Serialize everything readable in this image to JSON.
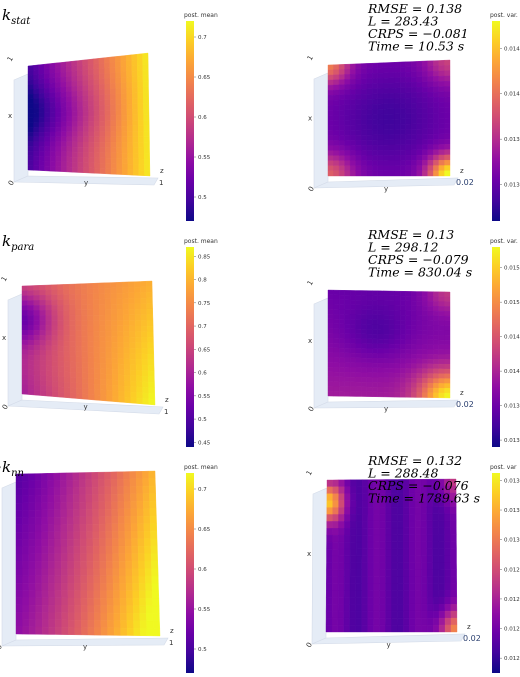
{
  "chart_data": [
    {
      "type": "surface3d",
      "kernel": "k",
      "kernel_sub": "stat",
      "colorbar_title": "post. mean",
      "colorbar_ticks": [
        "0.7",
        "0.65",
        "0.6",
        "0.55",
        "0.5"
      ],
      "colorbar_range": [
        0.47,
        0.72
      ],
      "axes": {
        "x": "x",
        "y": "y",
        "z": "z"
      },
      "ticks": {
        "x_top": "1",
        "x_bottom": "0",
        "z": "1"
      },
      "colorscale": "plasma"
    },
    {
      "type": "surface3d",
      "colorbar_title": "post. var.",
      "colorbar_ticks": [
        "0.0145",
        "0.014",
        "0.0135",
        "0.013"
      ],
      "colorbar_range": [
        0.0126,
        0.0148
      ],
      "axes": {
        "x": "x",
        "y": "y",
        "z": "z"
      },
      "ticks": {
        "x_top": "1",
        "x_bottom": "0",
        "z": "0.02"
      },
      "colorscale": "plasma",
      "stats": [
        "RMSE = 0.138",
        "L = 283.43",
        "CRPS = −0.081",
        "Time = 10.53 s"
      ]
    },
    {
      "type": "surface3d",
      "kernel": "k",
      "kernel_sub": "para",
      "colorbar_title": "post. mean",
      "colorbar_ticks": [
        "0.85",
        "0.8",
        "0.75",
        "0.7",
        "0.65",
        "0.6",
        "0.55",
        "0.5",
        "0.45"
      ],
      "colorbar_range": [
        0.44,
        0.87
      ],
      "axes": {
        "x": "x",
        "y": "y",
        "z": "z"
      },
      "ticks": {
        "x_top": "1",
        "x_bottom": "0",
        "z": "1"
      },
      "colorscale": "plasma"
    },
    {
      "type": "surface3d",
      "colorbar_title": "post. var.",
      "colorbar_ticks": [
        "0.0155",
        "0.015",
        "0.0145",
        "0.014",
        "0.0135",
        "0.013"
      ],
      "colorbar_range": [
        0.0129,
        0.0158
      ],
      "axes": {
        "x": "x",
        "y": "y",
        "z": "z"
      },
      "ticks": {
        "x_top": "1",
        "x_bottom": "0",
        "z": "0.02"
      },
      "colorscale": "plasma",
      "stats": [
        "RMSE = 0.13",
        "L = 298.12",
        "CRPS = −0.079",
        "Time = 830.04 s"
      ]
    },
    {
      "type": "surface3d",
      "kernel": "k",
      "kernel_sub": "nn",
      "colorbar_title": "post. mean",
      "colorbar_ticks": [
        "0.7",
        "0.65",
        "0.6",
        "0.55",
        "0.5"
      ],
      "colorbar_range": [
        0.47,
        0.72
      ],
      "axes": {
        "x": "x",
        "y": "y",
        "z": "z"
      },
      "ticks": {
        "x_top": "1",
        "x_bottom": "0",
        "z": "1"
      },
      "colorscale": "plasma"
    },
    {
      "type": "surface3d",
      "colorbar_title": "post. var",
      "colorbar_ticks": [
        "0.0134",
        "0.0132",
        "0.013",
        "0.0128",
        "0.0126",
        "0.0124",
        "0.0122"
      ],
      "colorbar_range": [
        0.0121,
        0.01345
      ],
      "axes": {
        "x": "x",
        "y": "y",
        "z": "z"
      },
      "ticks": {
        "x_top": "1",
        "x_bottom": "0",
        "z": "0.02"
      },
      "colorscale": "plasma",
      "stats": [
        "RMSE = 0.132",
        "L = 288.48",
        "CRPS = −0.076",
        "Time = 1789.63 s"
      ]
    }
  ]
}
